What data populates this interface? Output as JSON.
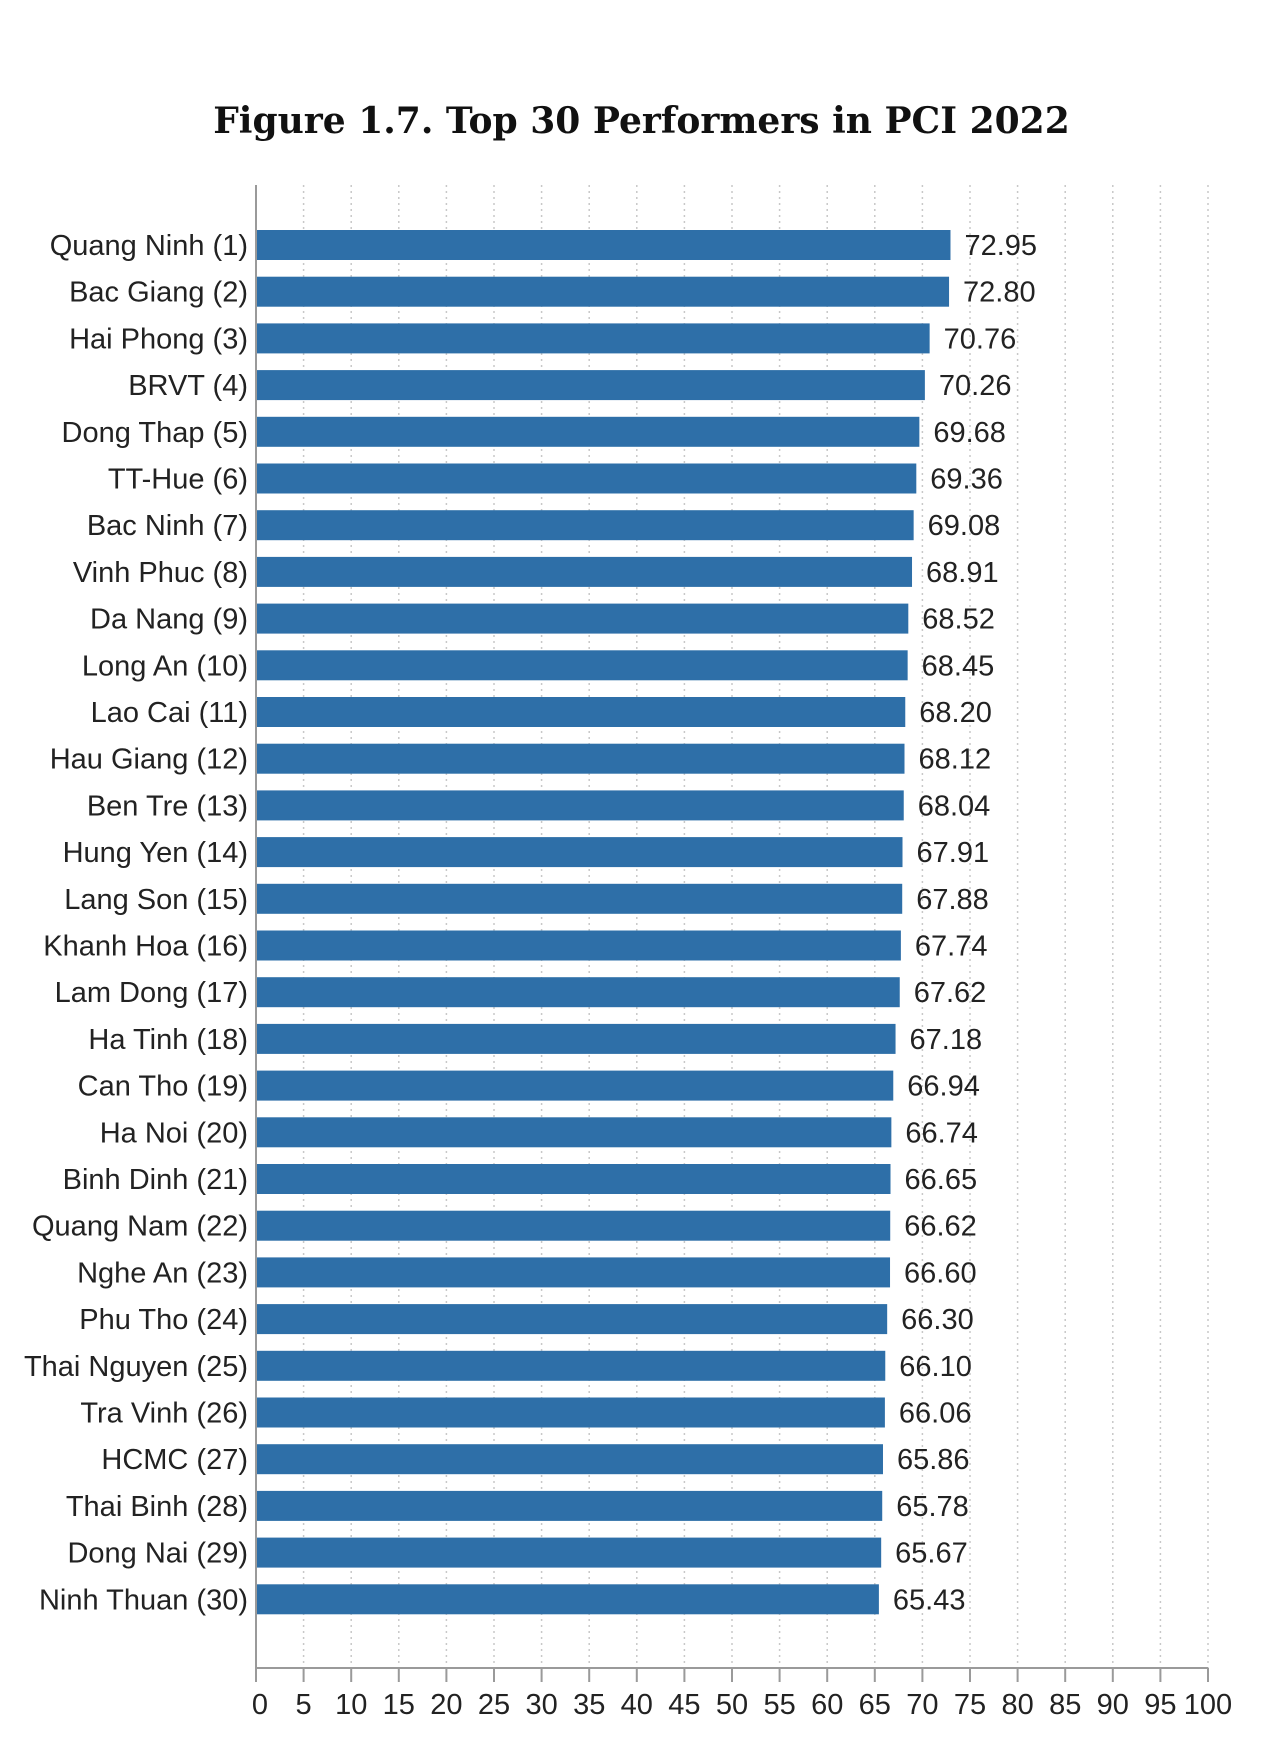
{
  "chart_data": {
    "type": "bar",
    "orientation": "horizontal",
    "title": "Figure 1.7. Top 30 Performers in PCI 2022",
    "xlabel": "",
    "ylabel": "",
    "xlim": [
      0,
      100
    ],
    "x_ticks": [
      0,
      5,
      10,
      15,
      20,
      25,
      30,
      35,
      40,
      45,
      50,
      55,
      60,
      65,
      70,
      75,
      80,
      85,
      90,
      95,
      100
    ],
    "grid": "vertical dotted",
    "legend": "none",
    "bar_color": "#2e6fa8",
    "categories": [
      "Quang Ninh (1)",
      "Bac Giang (2)",
      "Hai Phong (3)",
      "BRVT (4)",
      "Dong Thap (5)",
      "TT-Hue (6)",
      "Bac Ninh (7)",
      "Vinh Phuc (8)",
      "Da Nang (9)",
      "Long An (10)",
      "Lao Cai (11)",
      "Hau Giang (12)",
      "Ben Tre (13)",
      "Hung Yen (14)",
      "Lang Son (15)",
      "Khanh Hoa (16)",
      "Lam Dong (17)",
      "Ha Tinh (18)",
      "Can Tho (19)",
      "Ha Noi (20)",
      "Binh Dinh (21)",
      "Quang Nam (22)",
      "Nghe An (23)",
      "Phu Tho (24)",
      "Thai Nguyen (25)",
      "Tra Vinh (26)",
      "HCMC (27)",
      "Thai Binh (28)",
      "Dong Nai (29)",
      "Ninh Thuan (30)"
    ],
    "values": [
      72.95,
      72.8,
      70.76,
      70.26,
      69.68,
      69.36,
      69.08,
      68.91,
      68.52,
      68.45,
      68.2,
      68.12,
      68.04,
      67.91,
      67.88,
      67.74,
      67.62,
      67.18,
      66.94,
      66.74,
      66.65,
      66.62,
      66.6,
      66.3,
      66.1,
      66.06,
      65.86,
      65.78,
      65.67,
      65.43
    ],
    "value_labels": [
      "72.95",
      "72.80",
      "70.76",
      "70.26",
      "69.68",
      "69.36",
      "69.08",
      "68.91",
      "68.52",
      "68.45",
      "68.20",
      "68.12",
      "68.04",
      "67.91",
      "67.88",
      "67.74",
      "67.62",
      "67.18",
      "66.94",
      "66.74",
      "66.65",
      "66.62",
      "66.60",
      "66.30",
      "66.10",
      "66.06",
      "65.86",
      "65.78",
      "65.67",
      "65.43"
    ]
  }
}
